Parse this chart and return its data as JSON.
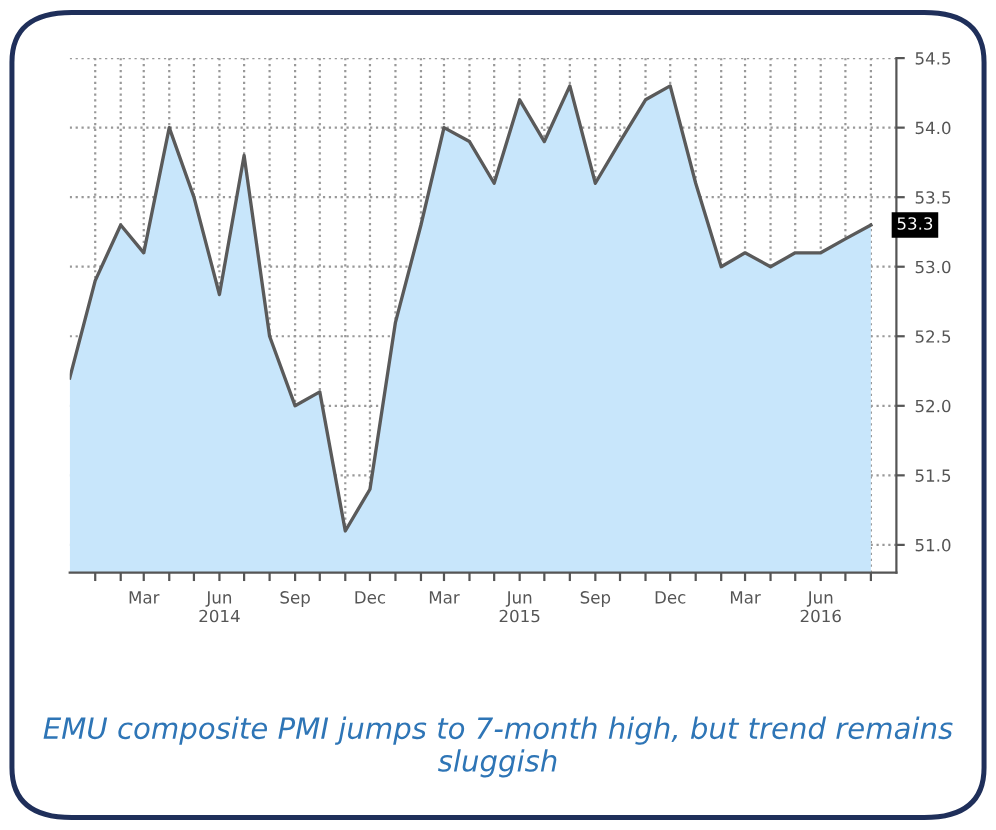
{
  "chart_data": {
    "type": "area",
    "x": [
      "2013-12",
      "2014-01",
      "2014-02",
      "2014-03",
      "2014-04",
      "2014-05",
      "2014-06",
      "2014-07",
      "2014-08",
      "2014-09",
      "2014-10",
      "2014-11",
      "2014-12",
      "2015-01",
      "2015-02",
      "2015-03",
      "2015-04",
      "2015-05",
      "2015-06",
      "2015-07",
      "2015-08",
      "2015-09",
      "2015-10",
      "2015-11",
      "2015-12",
      "2016-01",
      "2016-02",
      "2016-03",
      "2016-04",
      "2016-05",
      "2016-06",
      "2016-07",
      "2016-08"
    ],
    "series": [
      {
        "color": "#c8e6fb",
        "values": [
          52.2,
          52.9,
          53.3,
          53.1,
          54.0,
          53.5,
          52.8,
          53.8,
          52.5,
          52.0,
          52.1,
          51.1,
          51.4,
          52.6,
          53.3,
          54.0,
          53.9,
          53.6,
          54.2,
          53.9,
          54.3,
          53.6,
          53.9,
          54.2,
          54.3,
          53.6,
          53.0,
          53.1,
          53.0,
          53.1,
          53.1,
          53.2,
          53.3
        ]
      }
    ],
    "xlim": [
      "2013-12",
      "2016-09"
    ],
    "xticks": [
      {
        "value": "2014-01",
        "label": null
      },
      {
        "value": "2014-02",
        "label": null
      },
      {
        "value": "2014-03",
        "label": "Mar"
      },
      {
        "value": "2014-04",
        "label": null
      },
      {
        "value": "2014-05",
        "label": null
      },
      {
        "value": "2014-06",
        "label": "Jun\n2014"
      },
      {
        "value": "2014-07",
        "label": null
      },
      {
        "value": "2014-08",
        "label": null
      },
      {
        "value": "2014-09",
        "label": "Sep"
      },
      {
        "value": "2014-10",
        "label": null
      },
      {
        "value": "2014-11",
        "label": null
      },
      {
        "value": "2014-12",
        "label": "Dec"
      },
      {
        "value": "2015-01",
        "label": null
      },
      {
        "value": "2015-02",
        "label": null
      },
      {
        "value": "2015-03",
        "label": "Mar"
      },
      {
        "value": "2015-04",
        "label": null
      },
      {
        "value": "2015-05",
        "label": null
      },
      {
        "value": "2015-06",
        "label": "Jun\n2015"
      },
      {
        "value": "2015-07",
        "label": null
      },
      {
        "value": "2015-08",
        "label": null
      },
      {
        "value": "2015-09",
        "label": "Sep"
      },
      {
        "value": "2015-10",
        "label": null
      },
      {
        "value": "2015-11",
        "label": null
      },
      {
        "value": "2015-12",
        "label": "Dec"
      },
      {
        "value": "2016-01",
        "label": null
      },
      {
        "value": "2016-02",
        "label": null
      },
      {
        "value": "2016-03",
        "label": "Mar"
      },
      {
        "value": "2016-04",
        "label": null
      },
      {
        "value": "2016-05",
        "label": null
      },
      {
        "value": "2016-06",
        "label": "Jun\n2016"
      },
      {
        "value": "2016-07",
        "label": null
      },
      {
        "value": "2016-08",
        "label": null
      }
    ],
    "ylim": [
      50.8,
      54.5
    ],
    "yticks": [
      {
        "value": 51.0,
        "label": "51.0"
      },
      {
        "value": 51.5,
        "label": "51.5"
      },
      {
        "value": 52.0,
        "label": "52.0"
      },
      {
        "value": 52.5,
        "label": "52.5"
      },
      {
        "value": 53.0,
        "label": "53.0"
      },
      {
        "value": 53.5,
        "label": "53.5"
      },
      {
        "value": 54.0,
        "label": "54.0"
      },
      {
        "value": 54.5,
        "label": "54.5"
      }
    ],
    "grid": true,
    "annotations": [
      {
        "text": "53.3",
        "x": "2016-08",
        "y": 53.3
      },
      "EMU composite PMI jumps to 7-month high, but trend remains sluggish"
    ]
  }
}
